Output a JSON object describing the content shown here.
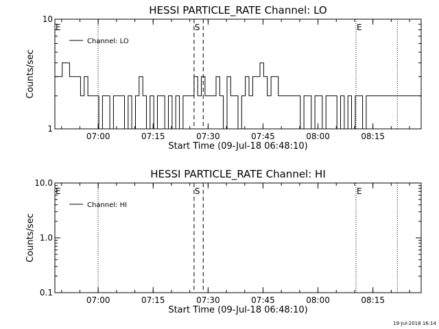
{
  "footer": {
    "timestamp": "19-Jul-2018 16:14"
  },
  "chart_data": [
    {
      "type": "line",
      "title": "HESSI PARTICLE_RATE Channel: LO",
      "xlabel": "Start Time (09-Jul-18 06:48:10)",
      "ylabel": "Counts/sec",
      "yscale": "log",
      "ylim": [
        1,
        10
      ],
      "ytick_labels": [
        {
          "v": 1,
          "label": "1"
        },
        {
          "v": 10,
          "label": "10"
        }
      ],
      "xlim_minutes": [
        0,
        100
      ],
      "xtick_labels": [
        "07:00",
        "07:15",
        "07:30",
        "07:45",
        "08:00",
        "08:15"
      ],
      "xtick_minutes": [
        11.83,
        26.83,
        41.83,
        56.83,
        71.83,
        86.83
      ],
      "grid": false,
      "legend": {
        "position": "top-left",
        "entries": [
          {
            "name": "Channel: LO",
            "style": "solid"
          }
        ]
      },
      "markers": [
        {
          "label": "E",
          "minute": 0,
          "style": "dotted"
        },
        {
          "label": "",
          "minute": 11.8,
          "style": "dotted"
        },
        {
          "label": "S",
          "minute": 38.0,
          "style": "dashed"
        },
        {
          "label": "",
          "minute": 40.5,
          "style": "dashed"
        },
        {
          "label": "E",
          "minute": 82.2,
          "style": "dotted"
        },
        {
          "label": "",
          "minute": 93.5,
          "style": "dotted"
        }
      ],
      "series": [
        {
          "name": "Channel: LO",
          "x_minutes": [
            0,
            1,
            2,
            3,
            4,
            5,
            6,
            7,
            8,
            9,
            10,
            11,
            12,
            13,
            14,
            15,
            16,
            17,
            18,
            19,
            20,
            21,
            22,
            23,
            24,
            25,
            26,
            27,
            28,
            29,
            30,
            31,
            32,
            33,
            34,
            35,
            36,
            37,
            38,
            39,
            40,
            41,
            42,
            43,
            44,
            45,
            46,
            47,
            48,
            49,
            50,
            51,
            52,
            53,
            54,
            55,
            56,
            57,
            58,
            59,
            60,
            61,
            62,
            63,
            64,
            65,
            66,
            67,
            68,
            69,
            70,
            71,
            72,
            73,
            74,
            75,
            76,
            77,
            78,
            79,
            80,
            81,
            82,
            83,
            84,
            85,
            86,
            87,
            88,
            89,
            90,
            91,
            92,
            93,
            94,
            95,
            96,
            97,
            98,
            99,
            100
          ],
          "values": [
            3,
            3,
            4,
            4,
            3,
            3,
            3,
            2,
            3,
            2,
            2,
            2,
            1,
            2,
            2,
            1,
            2,
            2,
            2,
            1,
            2,
            1,
            2,
            3,
            2,
            1,
            2,
            1,
            2,
            2,
            1,
            2,
            1,
            2,
            1,
            2,
            2,
            2,
            3,
            2,
            3,
            2,
            2,
            2,
            3,
            2,
            1,
            3,
            2,
            2,
            1,
            2,
            3,
            2,
            3,
            3,
            4,
            3,
            2,
            3,
            3,
            2,
            2,
            2,
            2,
            2,
            2,
            1,
            2,
            2,
            1,
            2,
            2,
            1,
            2,
            2,
            2,
            1,
            2,
            1,
            2,
            1,
            2,
            2,
            1,
            2,
            2,
            2,
            2,
            2,
            2,
            2,
            2,
            2,
            2,
            2,
            2,
            2,
            2,
            2,
            2
          ]
        }
      ]
    },
    {
      "type": "line",
      "title": "HESSI PARTICLE_RATE Channel: HI",
      "xlabel": "Start Time (09-Jul-18 06:48:10)",
      "ylabel": "Counts/sec",
      "yscale": "log",
      "ylim": [
        0.1,
        10
      ],
      "ytick_labels": [
        {
          "v": 0.1,
          "label": "0.1"
        },
        {
          "v": 1,
          "label": "1.0"
        },
        {
          "v": 10,
          "label": "10.0"
        }
      ],
      "xlim_minutes": [
        0,
        100
      ],
      "xtick_labels": [
        "07:00",
        "07:15",
        "07:30",
        "07:45",
        "08:00",
        "08:15"
      ],
      "xtick_minutes": [
        11.83,
        26.83,
        41.83,
        56.83,
        71.83,
        86.83
      ],
      "grid": false,
      "legend": {
        "position": "top-left",
        "entries": [
          {
            "name": "Channel: HI",
            "style": "solid"
          }
        ]
      },
      "markers": [
        {
          "label": "E",
          "minute": 0,
          "style": "dotted"
        },
        {
          "label": "",
          "minute": 11.8,
          "style": "dotted"
        },
        {
          "label": "S",
          "minute": 38.0,
          "style": "dashed"
        },
        {
          "label": "",
          "minute": 40.5,
          "style": "dashed"
        },
        {
          "label": "E",
          "minute": 82.2,
          "style": "dotted"
        },
        {
          "label": "",
          "minute": 93.5,
          "style": "dotted"
        }
      ],
      "series": [
        {
          "name": "Channel: HI",
          "x_minutes": [],
          "values": []
        }
      ]
    }
  ]
}
